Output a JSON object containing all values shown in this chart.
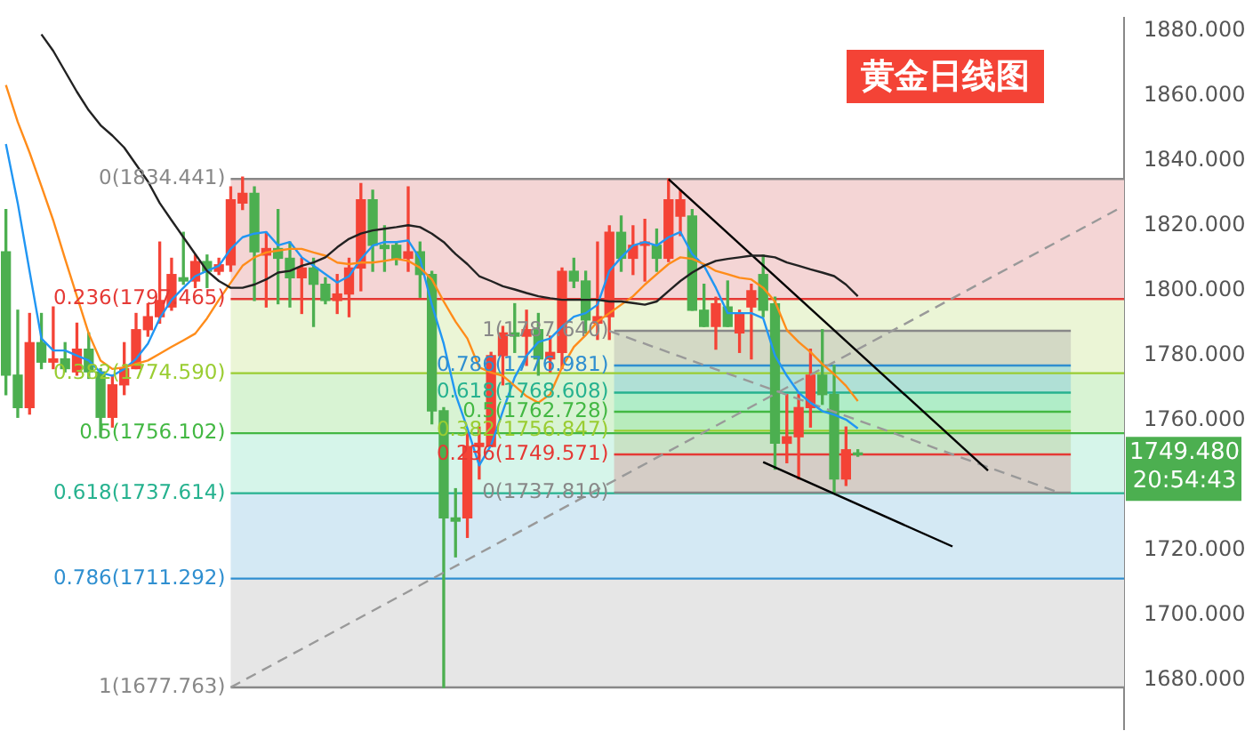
{
  "chart_data": {
    "type": "candlestick",
    "title": "黄金日线图",
    "tick_labels": "y",
    "marker": "none",
    "categories": [
      null,
      null,
      null,
      null,
      null,
      null,
      null,
      null,
      null,
      null,
      null,
      null,
      null,
      null,
      null,
      null,
      null,
      null,
      null,
      null,
      null,
      null,
      null,
      null,
      null,
      null,
      null,
      null,
      null,
      null,
      null,
      null,
      null,
      null,
      null,
      null,
      null,
      null,
      null,
      null,
      null,
      null,
      null,
      null,
      null,
      null,
      null,
      null,
      null,
      null,
      null,
      null,
      null,
      null,
      null,
      null,
      null,
      null,
      null,
      null,
      null,
      null,
      null,
      null,
      null,
      null,
      null,
      null,
      null,
      null,
      null,
      null,
      null,
      null,
      null,
      null,
      null,
      null,
      null,
      null,
      null,
      null,
      null,
      null,
      null,
      null,
      null,
      null,
      null,
      null,
      null,
      null,
      null,
      null,
      null
    ],
    "ohlc": [
      [
        1812,
        1825,
        1768,
        1774
      ],
      [
        1774,
        1794,
        1761,
        1764
      ],
      [
        1764,
        1793,
        1762,
        1784
      ],
      [
        1784,
        1793,
        1776,
        1778
      ],
      [
        1778,
        1795,
        1776,
        1779
      ],
      [
        1779,
        1784,
        1775,
        1776
      ],
      [
        1775,
        1790,
        1774,
        1782
      ],
      [
        1782,
        1787,
        1773,
        1775
      ],
      [
        1775,
        1776,
        1755,
        1761
      ],
      [
        1761,
        1774,
        1758,
        1771
      ],
      [
        1771,
        1784,
        1768,
        1776
      ],
      [
        1776,
        1793,
        1776,
        1788
      ],
      [
        1788,
        1796,
        1786,
        1792
      ],
      [
        1792,
        1815,
        1790,
        1797
      ],
      [
        1795,
        1810,
        1794,
        1805
      ],
      [
        1804,
        1818,
        1802,
        1803
      ],
      [
        1803,
        1811,
        1801,
        1809
      ],
      [
        1809,
        1811,
        1801,
        1806
      ],
      [
        1806,
        1810,
        1805,
        1808
      ],
      [
        1808,
        1832,
        1806,
        1828
      ],
      [
        1827,
        1835,
        1825,
        1830
      ],
      [
        1830,
        1832,
        1797,
        1812
      ],
      [
        1811,
        1818,
        1795,
        1813
      ],
      [
        1813,
        1825,
        1796,
        1810
      ],
      [
        1810,
        1815,
        1795,
        1804
      ],
      [
        1804,
        1810,
        1793,
        1807
      ],
      [
        1807,
        1810,
        1789,
        1802
      ],
      [
        1802,
        1804,
        1796,
        1797
      ],
      [
        1797,
        1805,
        1793,
        1799
      ],
      [
        1799,
        1810,
        1792,
        1807
      ],
      [
        1807,
        1833,
        1800,
        1828
      ],
      [
        1828,
        1831,
        1806,
        1814
      ],
      [
        1814,
        1820,
        1806,
        1813
      ],
      [
        1814,
        1815,
        1808,
        1810
      ],
      [
        1810,
        1832,
        1806,
        1812
      ],
      [
        1812,
        1815,
        1798,
        1805
      ],
      [
        1805,
        1806,
        1759,
        1763
      ],
      [
        1763,
        1764,
        1677.763,
        1730
      ],
      [
        1730,
        1739,
        1718,
        1729
      ],
      [
        1730,
        1756,
        1724,
        1752
      ],
      [
        1752,
        1758,
        1742,
        1753
      ],
      [
        1752,
        1781,
        1752,
        1780
      ],
      [
        1780,
        1789,
        1771,
        1787
      ],
      [
        1787,
        1796,
        1781,
        1786
      ],
      [
        1786,
        1794,
        1777,
        1788
      ],
      [
        1788,
        1793,
        1774,
        1779
      ],
      [
        1779,
        1786,
        1775,
        1781
      ],
      [
        1781,
        1807,
        1776,
        1806
      ],
      [
        1806,
        1810,
        1801,
        1803
      ],
      [
        1803,
        1806,
        1787,
        1791
      ],
      [
        1790,
        1815,
        1785,
        1792
      ],
      [
        1792,
        1820,
        1785,
        1818
      ],
      [
        1818,
        1823,
        1806,
        1810
      ],
      [
        1810,
        1820,
        1805,
        1814
      ],
      [
        1814,
        1822,
        1803,
        1815
      ],
      [
        1814,
        1819,
        1806,
        1810
      ],
      [
        1810,
        1834.441,
        1809,
        1828
      ],
      [
        1823,
        1831,
        1817,
        1828
      ],
      [
        1823,
        1825,
        1794,
        1794
      ],
      [
        1794,
        1802,
        1789,
        1789
      ],
      [
        1789,
        1798,
        1782,
        1796
      ],
      [
        1795,
        1803,
        1789,
        1789
      ],
      [
        1787,
        1794,
        1781,
        1793
      ],
      [
        1795,
        1802,
        1779,
        1800
      ],
      [
        1805,
        1811,
        1792,
        1794
      ],
      [
        1796,
        1798,
        1745,
        1753
      ],
      [
        1753,
        1768,
        1747,
        1755
      ],
      [
        1755,
        1768,
        1742,
        1764
      ],
      [
        1764,
        1782,
        1758,
        1774
      ],
      [
        1774,
        1788,
        1765,
        1768
      ],
      [
        1768,
        1777,
        1737.81,
        1742
      ],
      [
        1742,
        1758,
        1740,
        1751
      ],
      [
        1750,
        1751,
        1749,
        1749.48
      ],
      null,
      null,
      null,
      null,
      null,
      null,
      null,
      null,
      null,
      null,
      null,
      null,
      null,
      null,
      null,
      null,
      null,
      null,
      null,
      null,
      null,
      null
    ],
    "colors": [
      "#4caf50",
      "#4caf50",
      "#f44336",
      "#4caf50",
      "#f44336",
      "#4caf50",
      "#f44336",
      "#4caf50",
      "#4caf50",
      "#f44336",
      "#f44336",
      "#f44336",
      "#f44336",
      "#f44336",
      "#f44336",
      "#4caf50",
      "#f44336",
      "#4caf50",
      "#f44336",
      "#f44336",
      "#f44336",
      "#4caf50",
      "#f44336",
      "#4caf50",
      "#4caf50",
      "#f44336",
      "#4caf50",
      "#4caf50",
      "#f44336",
      "#f44336",
      "#f44336",
      "#4caf50",
      "#4caf50",
      "#4caf50",
      "#f44336",
      "#4caf50",
      "#4caf50",
      "#4caf50",
      "#4caf50",
      "#f44336",
      "#f44336",
      "#f44336",
      "#f44336",
      "#4caf50",
      "#f44336",
      "#4caf50",
      "#f44336",
      "#f44336",
      "#4caf50",
      "#4caf50",
      "#f44336",
      "#f44336",
      "#4caf50",
      "#f44336",
      "#f44336",
      "#4caf50",
      "#f44336",
      "#f44336",
      "#4caf50",
      "#4caf50",
      "#f44336",
      "#4caf50",
      "#f44336",
      "#f44336",
      "#4caf50",
      "#4caf50",
      "#f44336",
      "#f44336",
      "#f44336",
      "#4caf50",
      "#4caf50",
      "#f44336",
      "#4caf50",
      null,
      null,
      null,
      null,
      null,
      null,
      null,
      null,
      null,
      null,
      null,
      null,
      null,
      null,
      null,
      null,
      null,
      null,
      null,
      null,
      null,
      null
    ],
    "series": [
      {
        "type": "line",
        "color": "#222222",
        "values": [
          null,
          null,
          null,
          1879,
          1873.9,
          1867.6,
          1861.3,
          1855.6,
          1851,
          1847.8,
          1844.1,
          1838.9,
          1833.7,
          1827,
          1821.7,
          1816.5,
          1811.3,
          1806.1,
          1803,
          1800.9,
          1800.9,
          1801.9,
          1803.5,
          1805.6,
          1806.1,
          1807.7,
          1808.7,
          1810.3,
          1813.4,
          1816,
          1817.6,
          1818.6,
          1819.1,
          1819.6,
          1820.2,
          1819.6,
          1817.6,
          1815,
          1811.3,
          1808.2,
          1804.5,
          1803,
          1801.4,
          1800.4,
          1799.3,
          1798.3,
          1797.7,
          1797.2,
          1797.2,
          1797.2,
          1797.2,
          1796.7,
          1796.7,
          1796.2,
          1795.7,
          1796.7,
          1799.9,
          1803,
          1805.6,
          1807.7,
          1809.2,
          1809.8,
          1810.3,
          1810.8,
          1810.8,
          1810.3,
          1808.7,
          1807.7,
          1806.6,
          1805.6,
          1804.5,
          1801.9,
          1798.3,
          null,
          null,
          null,
          null,
          null,
          null,
          null,
          null,
          null,
          null,
          null,
          null,
          null,
          null,
          null,
          null,
          null,
          null,
          null,
          null,
          null,
          null
        ]
      },
      {
        "type": "line",
        "color": "#ff8c1a",
        "values": [
          1863.4,
          1852,
          1842.6,
          1832.2,
          1821.7,
          1809.8,
          1798.3,
          1786.8,
          1778.5,
          1775.9,
          1776.4,
          1777.5,
          1778.5,
          1780.6,
          1782.7,
          1784.7,
          1786.8,
          1791.5,
          1797.2,
          1802.5,
          1807.7,
          1810.3,
          1811.8,
          1812.4,
          1812.9,
          1812.9,
          1811.8,
          1810.8,
          1808.7,
          1808.2,
          1808.7,
          1808.7,
          1809.2,
          1809.8,
          1809.2,
          1807.1,
          1803.5,
          1796.7,
          1790.5,
          1785.3,
          1776.4,
          1774.8,
          1773.8,
          1770.7,
          1767.5,
          1765.5,
          1768.1,
          1776.4,
          1782.7,
          1786.3,
          1790.5,
          1793.1,
          1795.7,
          1798.3,
          1801.9,
          1805.1,
          1808.2,
          1810.3,
          1809.8,
          1808.2,
          1806.1,
          1805.1,
          1804,
          1803.5,
          1800.9,
          1796.7,
          1787.9,
          1784.2,
          1781.1,
          1777.4,
          1774.3,
          1770.7,
          1766,
          null,
          null,
          null,
          null,
          null,
          null,
          null,
          null,
          null,
          null,
          null,
          null,
          null,
          null,
          null,
          null,
          null,
          null,
          null,
          null,
          null,
          null
        ]
      },
      {
        "type": "line",
        "color": "#2196f3",
        "values": [
          1845.2,
          1827,
          1806,
          1785.3,
          1781.6,
          1781.6,
          1780,
          1778.5,
          1774.8,
          1773.8,
          1775.9,
          1779,
          1783.7,
          1791.5,
          1797.2,
          1800.9,
          1804.5,
          1806.1,
          1807.7,
          1812.9,
          1816.5,
          1817.6,
          1818.1,
          1814,
          1815,
          1810.3,
          1807.7,
          1805.1,
          1802.5,
          1804.5,
          1809.8,
          1813.9,
          1815,
          1815,
          1815.5,
          1809.8,
          1795.7,
          1783.7,
          1768.1,
          1757.6,
          1746.2,
          1752.4,
          1762.9,
          1773.3,
          1780,
          1784.2,
          1785.3,
          1788.9,
          1792,
          1793.1,
          1795.7,
          1806.1,
          1810.3,
          1813.9,
          1815,
          1813.9,
          1816.5,
          1818.1,
          1811.3,
          1807.7,
          1800.9,
          1793.1,
          1793.1,
          1793.1,
          1791.5,
          1780,
          1773.8,
          1768.6,
          1765.5,
          1762.9,
          1761.8,
          1760.3,
          1757.6,
          null,
          null,
          null,
          null,
          null,
          null,
          null,
          null,
          null,
          null,
          null,
          null,
          null,
          null,
          null,
          null,
          null,
          null,
          null,
          null,
          null,
          null
        ]
      },
      {
        "type": "line",
        "color": "#000000",
        "values": [
          null,
          null,
          null,
          null,
          null,
          null,
          null,
          null,
          null,
          null,
          null,
          null,
          null,
          null,
          null,
          null,
          null,
          null,
          null,
          null,
          null,
          null,
          null,
          null,
          null,
          null,
          null,
          null,
          null,
          null,
          null,
          null,
          null,
          null,
          null,
          null,
          null,
          null,
          null,
          null,
          null,
          null,
          null,
          null,
          null,
          null,
          null,
          null,
          null,
          null,
          null,
          null,
          null,
          null,
          null,
          null,
          1834.4,
          null,
          null,
          null,
          null,
          null,
          null,
          null,
          null,
          null,
          null,
          null,
          null,
          null,
          null,
          null,
          null,
          null,
          null,
          null,
          null,
          null,
          null,
          null,
          null,
          null,
          null,
          1744.6,
          null,
          null,
          null,
          null,
          null,
          null,
          null,
          null,
          null,
          null,
          null
        ]
      },
      {
        "type": "line",
        "color": "#000000",
        "values": [
          null,
          null,
          null,
          null,
          null,
          null,
          null,
          null,
          null,
          null,
          null,
          null,
          null,
          null,
          null,
          null,
          null,
          null,
          null,
          null,
          null,
          null,
          null,
          null,
          null,
          null,
          null,
          null,
          null,
          null,
          null,
          null,
          null,
          null,
          null,
          null,
          null,
          null,
          null,
          null,
          null,
          null,
          null,
          null,
          null,
          null,
          null,
          null,
          null,
          null,
          null,
          null,
          null,
          null,
          null,
          null,
          null,
          null,
          null,
          null,
          null,
          null,
          null,
          null,
          1747.2,
          null,
          null,
          null,
          null,
          null,
          null,
          null,
          null,
          null,
          null,
          null,
          null,
          null,
          null,
          null,
          1721.2,
          null,
          null,
          null,
          null,
          null,
          null,
          null,
          null,
          null,
          null,
          null,
          null,
          null,
          null
        ]
      },
      {
        "type": "line",
        "color": "#999999",
        "line_style": "dashed",
        "values": [
          null,
          null,
          null,
          null,
          null,
          null,
          null,
          null,
          null,
          null,
          null,
          null,
          null,
          null,
          null,
          null,
          null,
          null,
          null,
          1677.8,
          null,
          null,
          null,
          null,
          null,
          null,
          null,
          null,
          null,
          null,
          null,
          null,
          null,
          null,
          null,
          null,
          null,
          null,
          null,
          null,
          null,
          null,
          null,
          null,
          null,
          null,
          null,
          null,
          null,
          null,
          null,
          null,
          null,
          null,
          null,
          null,
          null,
          null,
          null,
          null,
          null,
          null,
          null,
          null,
          null,
          null,
          null,
          null,
          null,
          null,
          null,
          null,
          null,
          null,
          null,
          null,
          null,
          null,
          null,
          null,
          null,
          null,
          null,
          null,
          null,
          null,
          null,
          null,
          null,
          null,
          null,
          null,
          null,
          null,
          1825.2
        ]
      },
      {
        "type": "line",
        "color": "#999999",
        "line_style": "dashed",
        "values": [
          null,
          null,
          null,
          null,
          null,
          null,
          null,
          null,
          null,
          null,
          null,
          null,
          null,
          null,
          null,
          null,
          null,
          null,
          null,
          null,
          null,
          null,
          null,
          null,
          null,
          null,
          null,
          null,
          null,
          null,
          null,
          null,
          null,
          null,
          null,
          null,
          null,
          null,
          null,
          null,
          null,
          null,
          null,
          null,
          null,
          null,
          null,
          null,
          null,
          null,
          null,
          1787.6,
          null,
          null,
          null,
          null,
          null,
          null,
          null,
          null,
          null,
          null,
          null,
          null,
          null,
          null,
          null,
          null,
          null,
          null,
          null,
          null,
          null,
          null,
          null,
          null,
          null,
          null,
          null,
          null,
          null,
          null,
          null,
          null,
          null,
          null,
          null,
          null,
          null,
          1737.8,
          null,
          null,
          null,
          null,
          null
        ]
      }
    ],
    "ylim": [
      1665,
      1884
    ],
    "yticks": [
      {
        "value": 1680,
        "label": "1680.000"
      },
      {
        "value": 1700,
        "label": "1700.000"
      },
      {
        "value": 1720,
        "label": "1720.000"
      },
      {
        "value": 1760,
        "label": "1760.000"
      },
      {
        "value": 1780,
        "label": "1780.000"
      },
      {
        "value": 1800,
        "label": "1800.000"
      },
      {
        "value": 1820,
        "label": "1820.000"
      },
      {
        "value": 1840,
        "label": "1840.000"
      },
      {
        "value": 1860,
        "label": "1860.000"
      },
      {
        "value": 1880,
        "label": "1880.000"
      }
    ],
    "bands": [
      {
        "axis": "y",
        "from": 1797.465,
        "to": 1834.441,
        "color": "#f4d5d5"
      },
      {
        "axis": "y",
        "from": 1774.59,
        "to": 1797.465,
        "color": "#ebf5d6"
      },
      {
        "axis": "y",
        "from": 1756.102,
        "to": 1774.59,
        "color": "#d8f3d3"
      },
      {
        "axis": "y",
        "from": 1737.614,
        "to": 1756.102,
        "color": "#d6f5ea"
      },
      {
        "axis": "y",
        "from": 1711.292,
        "to": 1737.614,
        "color": "#d4e9f4"
      },
      {
        "axis": "y",
        "from": 1677.763,
        "to": 1711.292,
        "color": "#e6e6e6"
      },
      {
        "axis": "y",
        "from": 1776.981,
        "to": 1787.64,
        "color": "#d3d9c5"
      },
      {
        "axis": "y",
        "from": 1768.608,
        "to": 1776.981,
        "color": "#b0e0d6"
      },
      {
        "axis": "y",
        "from": 1762.728,
        "to": 1768.608,
        "color": "#b0edc8"
      },
      {
        "axis": "y",
        "from": 1756.847,
        "to": 1762.728,
        "color": "#b8ecbc"
      },
      {
        "axis": "y",
        "from": 1749.571,
        "to": 1756.847,
        "color": "#c9e3c6"
      },
      {
        "axis": "y",
        "from": 1737.81,
        "to": 1749.571,
        "color": "#d5cdc6"
      }
    ],
    "ref_lines": [
      {
        "axis": "y",
        "value": 1834.441,
        "label": "0(1834.441)",
        "color": "#888888"
      },
      {
        "axis": "y",
        "value": 1797.465,
        "label": "0.236(1797.465)",
        "color": "#e53935"
      },
      {
        "axis": "y",
        "value": 1774.59,
        "label": "0.382(1774.590)",
        "color": "#9acd32"
      },
      {
        "axis": "y",
        "value": 1756.102,
        "label": "0.5(1756.102)",
        "color": "#43b843"
      },
      {
        "axis": "y",
        "value": 1737.614,
        "label": "0.618(1737.614)",
        "color": "#26b28f"
      },
      {
        "axis": "y",
        "value": 1711.292,
        "label": "0.786(1711.292)",
        "color": "#2f8fd0"
      },
      {
        "axis": "y",
        "value": 1677.763,
        "label": "1(1677.763)",
        "color": "#888888"
      },
      {
        "axis": "y",
        "value": 1787.64,
        "label": "1(1787.640)",
        "color": "#888888"
      },
      {
        "axis": "y",
        "value": 1776.981,
        "label": "0.786(1776.981)",
        "color": "#2f8fd0"
      },
      {
        "axis": "y",
        "value": 1768.608,
        "label": "0.618(1768.608)",
        "color": "#26b28f"
      },
      {
        "axis": "y",
        "value": 1762.728,
        "label": "0.5(1762.728)",
        "color": "#43b843"
      },
      {
        "axis": "y",
        "value": 1756.847,
        "label": "0.382(1756.847)",
        "color": "#9acd32"
      },
      {
        "axis": "y",
        "value": 1749.571,
        "label": "0.236(1749.571)",
        "color": "#e53935"
      },
      {
        "axis": "y",
        "value": 1737.81,
        "label": "0(1737.810)",
        "color": "#888888"
      }
    ],
    "annotations": [
      "1749.480",
      "20:54:43"
    ]
  }
}
